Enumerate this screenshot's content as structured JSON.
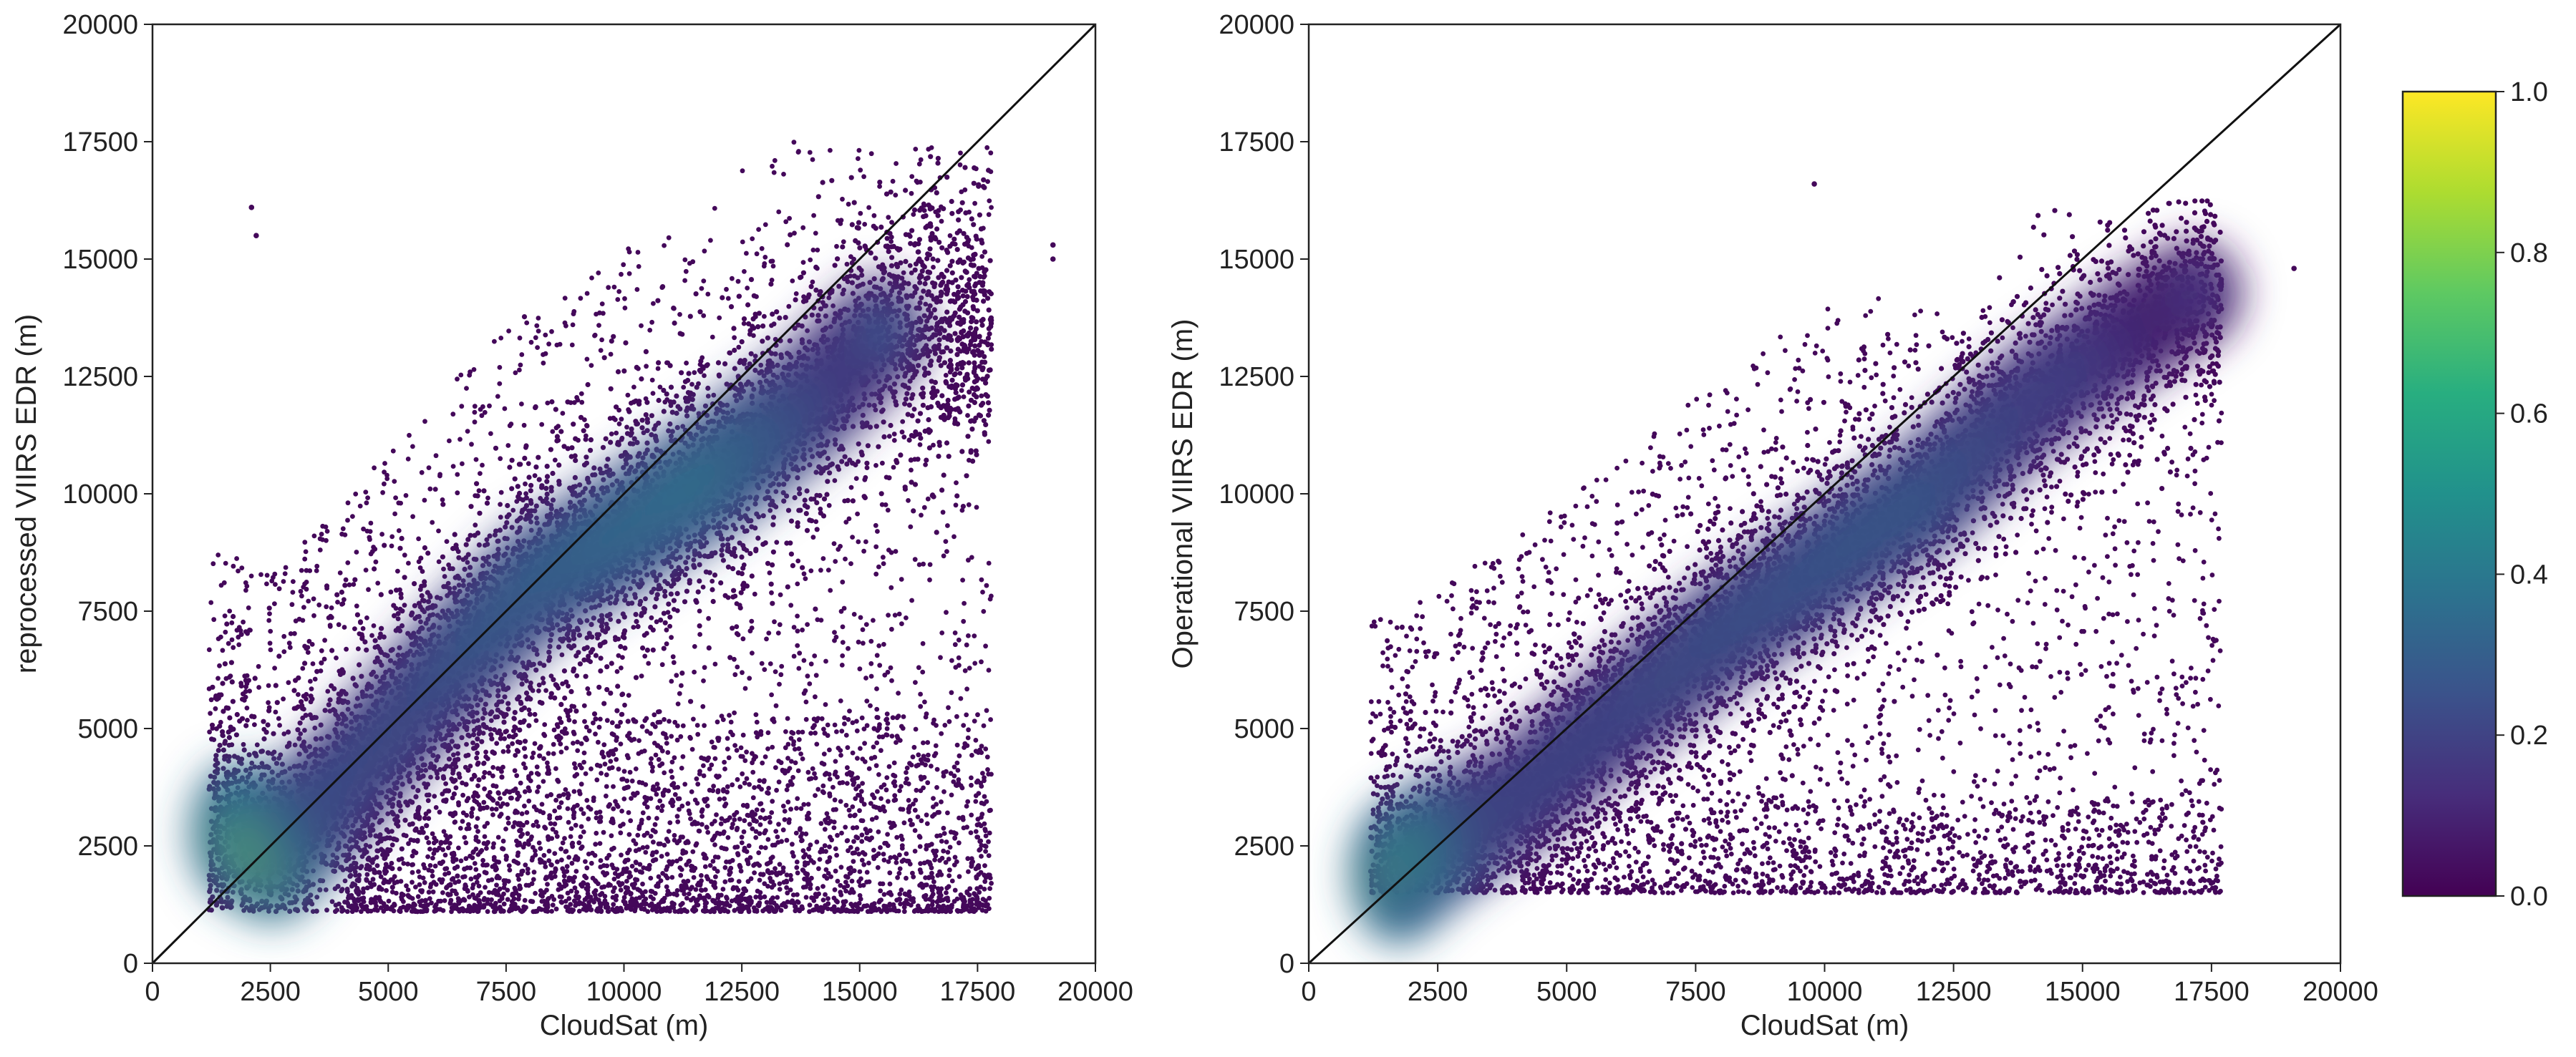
{
  "chart_data": [
    {
      "type": "scatter",
      "title": "",
      "xlabel": "CloudSat (m)",
      "ylabel": "reprocessed VIIRS EDR (m)",
      "xlim": [
        0,
        20000
      ],
      "ylim": [
        0,
        20000
      ],
      "xticks": [
        0,
        2500,
        5000,
        7500,
        10000,
        12500,
        15000,
        17500,
        20000
      ],
      "yticks": [
        0,
        2500,
        5000,
        7500,
        10000,
        12500,
        15000,
        17500,
        20000
      ],
      "xtick_labels": [
        "0",
        "2500",
        "5000",
        "7500",
        "10000",
        "12500",
        "15000",
        "17500",
        "20000"
      ],
      "ytick_labels": [
        "0",
        "2500",
        "5000",
        "7500",
        "10000",
        "12500",
        "15000",
        "17500",
        "20000"
      ],
      "reference_line": {
        "x": [
          0,
          20000
        ],
        "y": [
          0,
          20000
        ],
        "color": "#111111"
      },
      "density_core": {
        "x": [
          1800,
          2600,
          4000,
          6000,
          8000,
          10000,
          12000,
          14000,
          15500
        ],
        "y": [
          2800,
          2400,
          3800,
          6000,
          8000,
          9200,
          10500,
          12000,
          13500
        ],
        "peak_density": [
          0.75,
          0.85,
          0.35,
          0.35,
          0.45,
          0.5,
          0.55,
          0.4,
          0.25
        ]
      },
      "point_cloud_extent": {
        "x": [
          1200,
          17800
        ],
        "y": [
          1100,
          17500
        ],
        "outliers_x": [
          19100,
          19100,
          2100,
          2200
        ],
        "outliers_y": [
          15000,
          15300,
          16100,
          15500
        ]
      },
      "grid": false
    },
    {
      "type": "scatter",
      "title": "",
      "xlabel": "CloudSat (m)",
      "ylabel": "Operational VIIRS EDR (m)",
      "xlim": [
        0,
        20000
      ],
      "ylim": [
        0,
        20000
      ],
      "xticks": [
        0,
        2500,
        5000,
        7500,
        10000,
        12500,
        15000,
        17500,
        20000
      ],
      "yticks": [
        0,
        2500,
        5000,
        7500,
        10000,
        12500,
        15000,
        17500,
        20000
      ],
      "xtick_labels": [
        "0",
        "2500",
        "5000",
        "7500",
        "10000",
        "12500",
        "15000",
        "17500",
        "20000"
      ],
      "ytick_labels": [
        "0",
        "2500",
        "5000",
        "7500",
        "10000",
        "12500",
        "15000",
        "17500",
        "20000"
      ],
      "reference_line": {
        "x": [
          0,
          20000
        ],
        "y": [
          0,
          20000
        ],
        "color": "#111111"
      },
      "density_core": {
        "x": [
          1700,
          2400,
          4000,
          6000,
          8000,
          10000,
          12000,
          14000,
          16000,
          17200
        ],
        "y": [
          1900,
          2500,
          3500,
          5300,
          7000,
          8500,
          10000,
          12000,
          13500,
          14300
        ],
        "peak_density": [
          0.8,
          0.65,
          0.3,
          0.3,
          0.35,
          0.38,
          0.4,
          0.3,
          0.25,
          0.15
        ]
      },
      "point_cloud_extent": {
        "x": [
          1200,
          17700
        ],
        "y": [
          1500,
          16300
        ],
        "outliers_x": [
          19100,
          9800
        ],
        "outliers_y": [
          14800,
          16600
        ]
      },
      "grid": false
    }
  ],
  "colorbar": {
    "colormap": "viridis",
    "range": [
      0.0,
      1.0
    ],
    "ticks": [
      "0.0",
      "0.2",
      "0.4",
      "0.6",
      "0.8",
      "1.0"
    ],
    "colors": [
      "#440154",
      "#472d7b",
      "#3b528b",
      "#2c728e",
      "#21918c",
      "#28ae80",
      "#5ec962",
      "#addc30",
      "#fde725"
    ]
  }
}
